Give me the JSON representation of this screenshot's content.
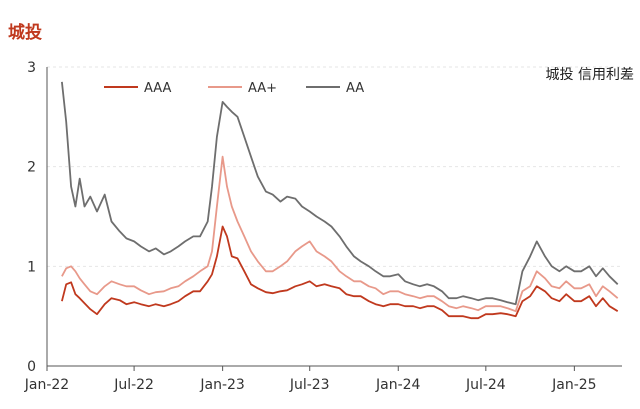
{
  "title": "城投",
  "annotation": "城投 信用利差",
  "colors": {
    "AAA": "#c0391e",
    "AA+": "#e8998a",
    "AA": "#6e6e6e",
    "title": "#c0391e",
    "grid": "#e6e6e6",
    "axis": "#555555"
  },
  "chart_data": {
    "type": "line",
    "title": "城投",
    "annotation": "城投 信用利差",
    "xlabel": "",
    "ylabel": "",
    "ylim": [
      0,
      3
    ],
    "yticks": [
      0,
      1,
      2,
      3
    ],
    "xlim": [
      "2022-01-01",
      "2025-04-10"
    ],
    "xticks": [
      {
        "label": "Jan-22",
        "date": "2022-01-01"
      },
      {
        "label": "Jul-22",
        "date": "2022-07-01"
      },
      {
        "label": "Jan-23",
        "date": "2023-01-01"
      },
      {
        "label": "Jul-23",
        "date": "2023-07-01"
      },
      {
        "label": "Jan-24",
        "date": "2024-01-01"
      },
      {
        "label": "Jul-24",
        "date": "2024-07-01"
      },
      {
        "label": "Jan-25",
        "date": "2025-01-01"
      }
    ],
    "grid": "horizontal",
    "legend": "top-left",
    "x": [
      "2022-02-01",
      "2022-02-10",
      "2022-02-20",
      "2022-03-01",
      "2022-03-10",
      "2022-03-20",
      "2022-04-01",
      "2022-04-15",
      "2022-05-01",
      "2022-05-15",
      "2022-06-01",
      "2022-06-15",
      "2022-07-01",
      "2022-07-15",
      "2022-08-01",
      "2022-08-15",
      "2022-09-01",
      "2022-09-15",
      "2022-10-01",
      "2022-10-15",
      "2022-11-01",
      "2022-11-15",
      "2022-12-01",
      "2022-12-10",
      "2022-12-20",
      "2023-01-01",
      "2023-01-10",
      "2023-01-20",
      "2023-02-01",
      "2023-02-15",
      "2023-03-01",
      "2023-03-15",
      "2023-04-01",
      "2023-04-15",
      "2023-05-01",
      "2023-05-15",
      "2023-06-01",
      "2023-06-15",
      "2023-07-01",
      "2023-07-15",
      "2023-08-01",
      "2023-08-15",
      "2023-09-01",
      "2023-09-15",
      "2023-10-01",
      "2023-10-15",
      "2023-11-01",
      "2023-11-15",
      "2023-12-01",
      "2023-12-15",
      "2024-01-01",
      "2024-01-15",
      "2024-02-01",
      "2024-02-15",
      "2024-03-01",
      "2024-03-15",
      "2024-04-01",
      "2024-04-15",
      "2024-05-01",
      "2024-05-15",
      "2024-06-01",
      "2024-06-15",
      "2024-07-01",
      "2024-07-15",
      "2024-08-01",
      "2024-08-15",
      "2024-09-01",
      "2024-09-15",
      "2024-10-01",
      "2024-10-15",
      "2024-11-01",
      "2024-11-15",
      "2024-12-01",
      "2024-12-15",
      "2025-01-01",
      "2025-01-15",
      "2025-02-01",
      "2025-02-15",
      "2025-03-01",
      "2025-03-15",
      "2025-04-01"
    ],
    "series": [
      {
        "name": "AAA",
        "values": [
          0.65,
          0.82,
          0.84,
          0.72,
          0.68,
          0.63,
          0.57,
          0.52,
          0.62,
          0.68,
          0.66,
          0.62,
          0.64,
          0.62,
          0.6,
          0.62,
          0.6,
          0.62,
          0.65,
          0.7,
          0.75,
          0.75,
          0.85,
          0.92,
          1.1,
          1.4,
          1.3,
          1.1,
          1.08,
          0.95,
          0.82,
          0.78,
          0.74,
          0.73,
          0.75,
          0.76,
          0.8,
          0.82,
          0.85,
          0.8,
          0.82,
          0.8,
          0.78,
          0.72,
          0.7,
          0.7,
          0.65,
          0.62,
          0.6,
          0.62,
          0.62,
          0.6,
          0.6,
          0.58,
          0.6,
          0.6,
          0.56,
          0.5,
          0.5,
          0.5,
          0.48,
          0.48,
          0.52,
          0.52,
          0.53,
          0.52,
          0.5,
          0.65,
          0.7,
          0.8,
          0.75,
          0.68,
          0.65,
          0.72,
          0.65,
          0.65,
          0.7,
          0.6,
          0.68,
          0.6,
          0.55
        ]
      },
      {
        "name": "AA+",
        "values": [
          0.9,
          0.98,
          1.0,
          0.95,
          0.88,
          0.82,
          0.75,
          0.72,
          0.8,
          0.85,
          0.82,
          0.8,
          0.8,
          0.76,
          0.72,
          0.74,
          0.75,
          0.78,
          0.8,
          0.85,
          0.9,
          0.95,
          1.0,
          1.15,
          1.6,
          2.1,
          1.8,
          1.6,
          1.45,
          1.3,
          1.15,
          1.05,
          0.95,
          0.95,
          1.0,
          1.05,
          1.15,
          1.2,
          1.25,
          1.15,
          1.1,
          1.05,
          0.95,
          0.9,
          0.85,
          0.85,
          0.8,
          0.78,
          0.72,
          0.75,
          0.75,
          0.72,
          0.7,
          0.68,
          0.7,
          0.7,
          0.65,
          0.6,
          0.58,
          0.6,
          0.58,
          0.56,
          0.6,
          0.6,
          0.6,
          0.58,
          0.55,
          0.75,
          0.8,
          0.95,
          0.88,
          0.8,
          0.78,
          0.85,
          0.78,
          0.78,
          0.82,
          0.7,
          0.8,
          0.75,
          0.68
        ]
      },
      {
        "name": "AA",
        "values": [
          2.85,
          2.45,
          1.8,
          1.6,
          1.88,
          1.6,
          1.7,
          1.55,
          1.72,
          1.45,
          1.35,
          1.28,
          1.25,
          1.2,
          1.15,
          1.18,
          1.12,
          1.15,
          1.2,
          1.25,
          1.3,
          1.3,
          1.45,
          1.8,
          2.3,
          2.65,
          2.6,
          2.55,
          2.5,
          2.3,
          2.1,
          1.9,
          1.75,
          1.72,
          1.65,
          1.7,
          1.68,
          1.6,
          1.55,
          1.5,
          1.45,
          1.4,
          1.3,
          1.2,
          1.1,
          1.05,
          1.0,
          0.95,
          0.9,
          0.9,
          0.92,
          0.85,
          0.82,
          0.8,
          0.82,
          0.8,
          0.75,
          0.68,
          0.68,
          0.7,
          0.68,
          0.66,
          0.68,
          0.68,
          0.66,
          0.64,
          0.62,
          0.95,
          1.1,
          1.25,
          1.1,
          1.0,
          0.95,
          1.0,
          0.95,
          0.95,
          1.0,
          0.9,
          0.98,
          0.9,
          0.82
        ]
      }
    ]
  }
}
